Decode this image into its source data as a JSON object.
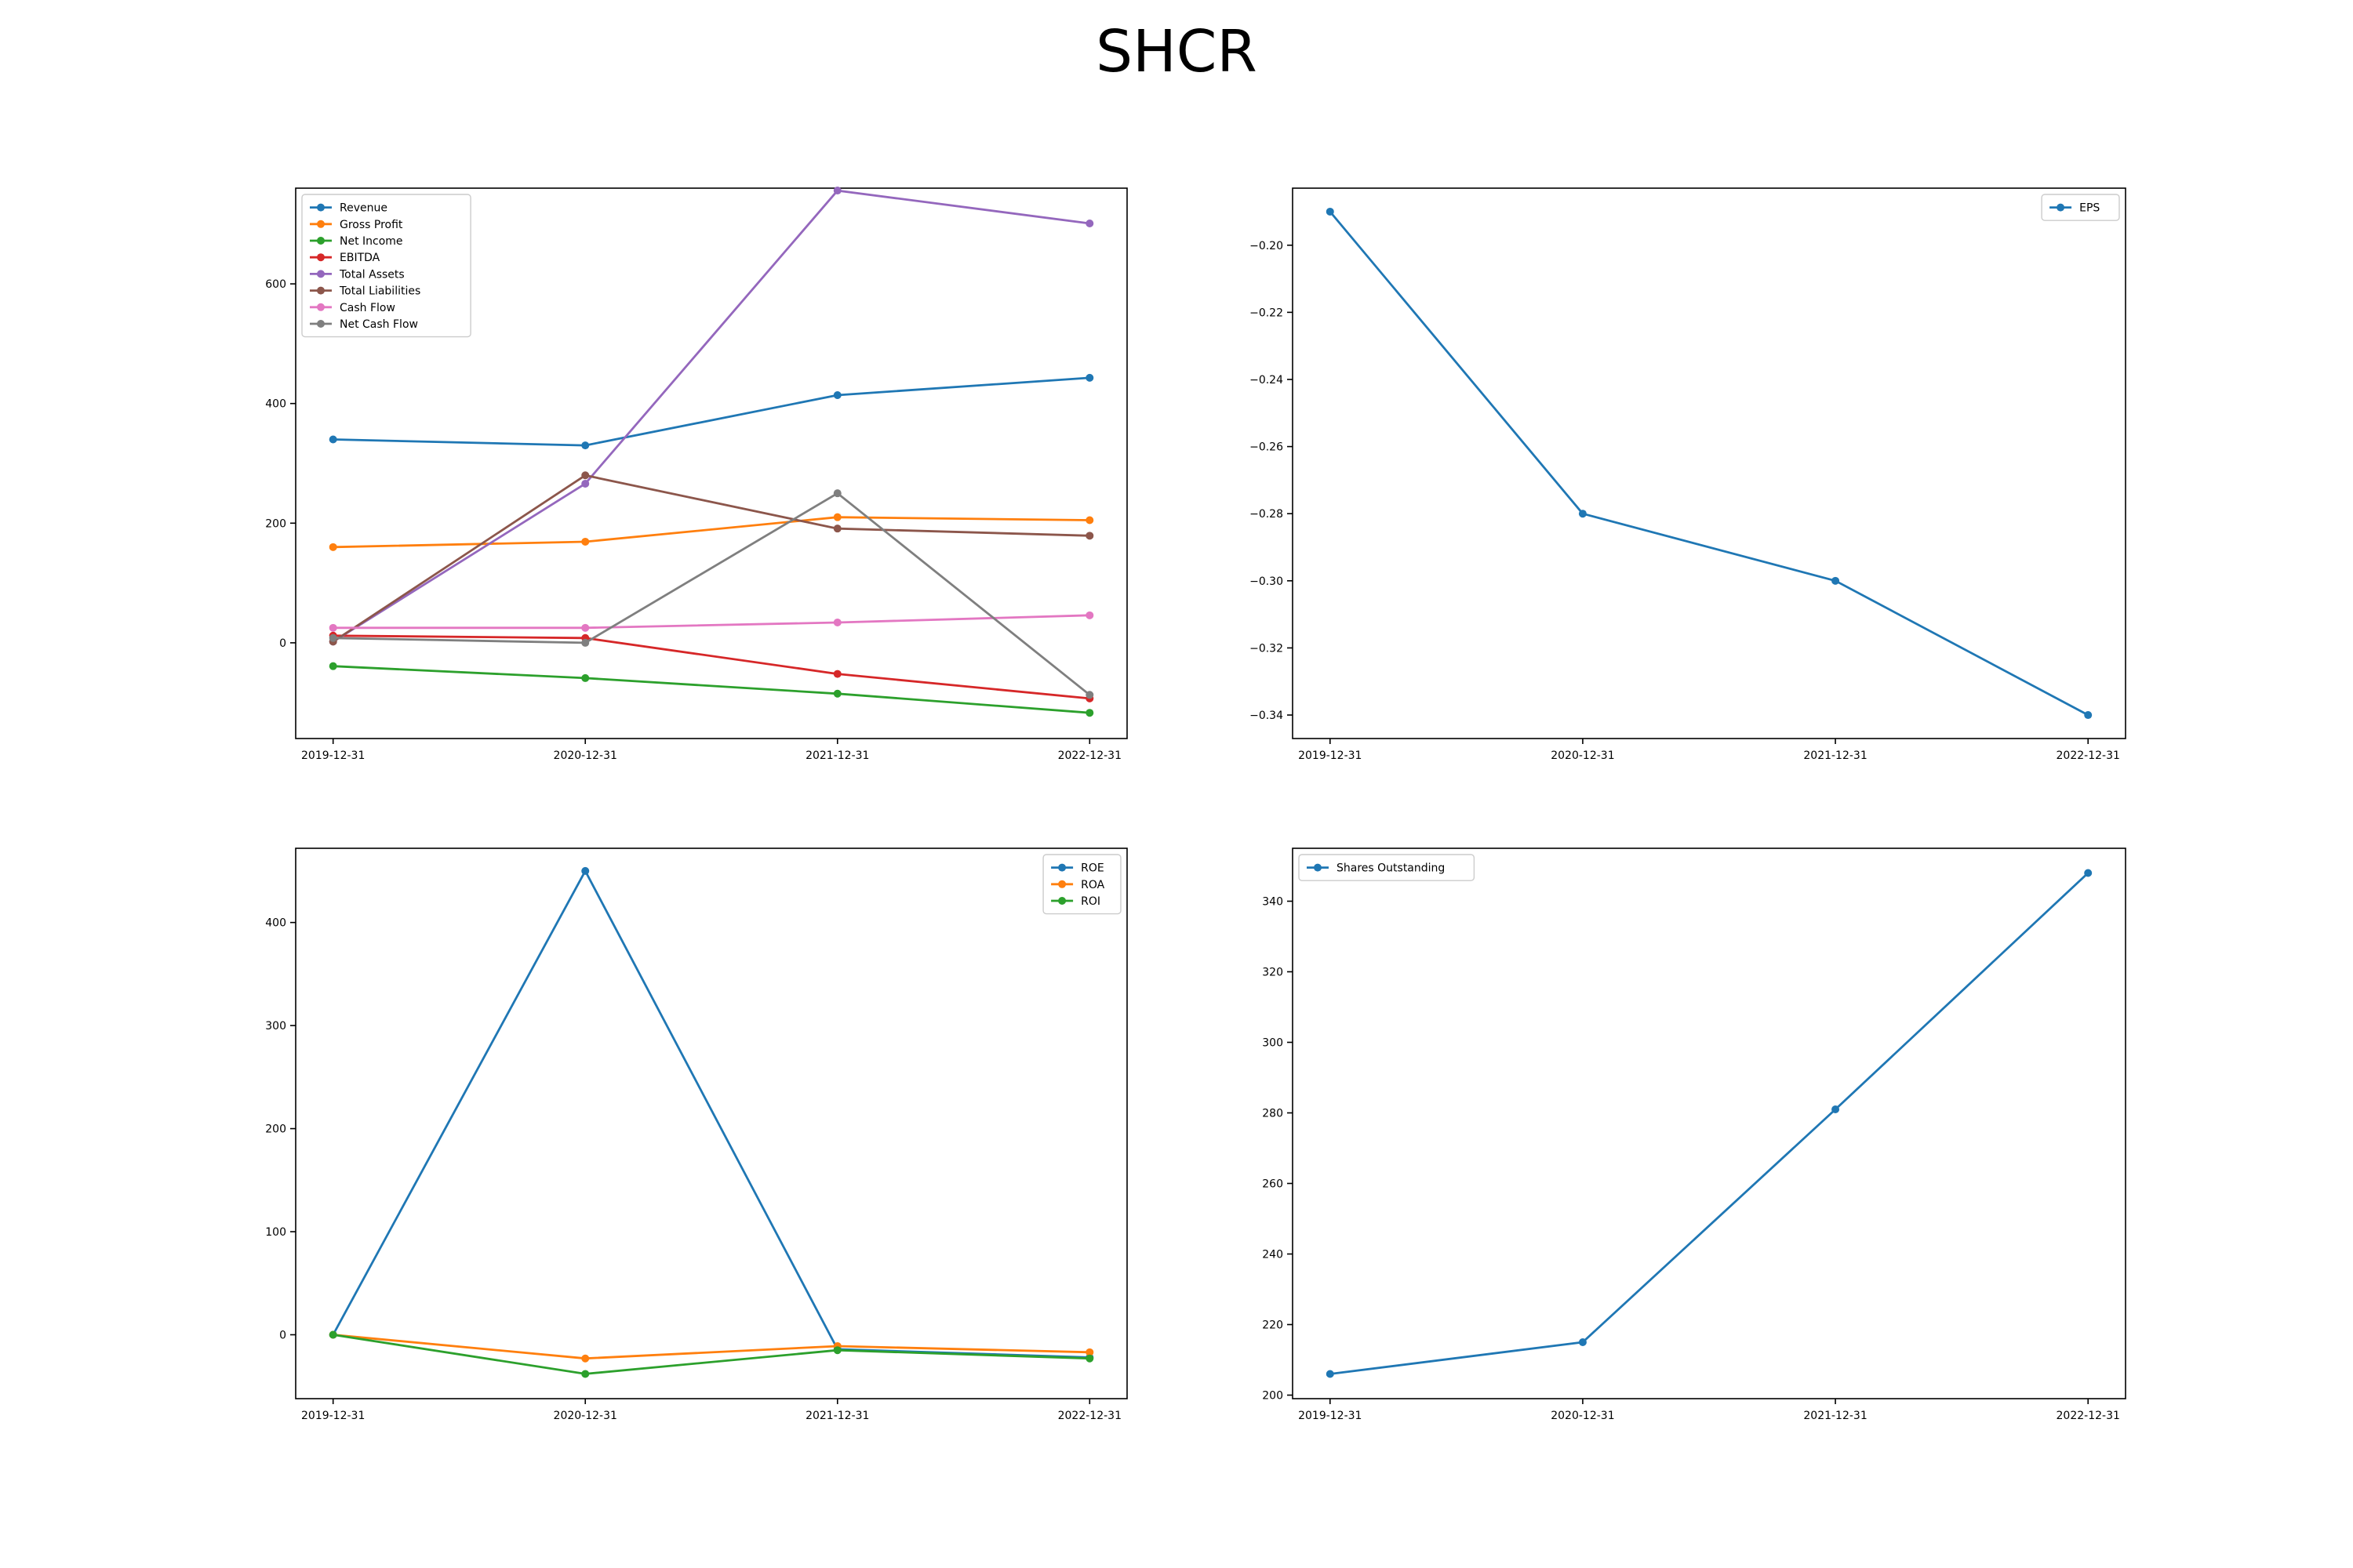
{
  "title": "SHCR",
  "chart_data": [
    {
      "type": "line",
      "categories": [
        "2019-12-31",
        "2020-12-31",
        "2021-12-31",
        "2022-12-31"
      ],
      "ylim": [
        -160,
        760
      ],
      "yticks": [
        0,
        200,
        400,
        600
      ],
      "ytick_labels": [
        "0",
        "200",
        "400",
        "600"
      ],
      "legend_position": "upper-left",
      "series": [
        {
          "name": "Revenue",
          "color": "#1f77b4",
          "values": [
            340,
            330,
            414,
            443
          ]
        },
        {
          "name": "Gross Profit",
          "color": "#ff7f0e",
          "values": [
            160,
            169,
            210,
            205
          ]
        },
        {
          "name": "Net Income",
          "color": "#2ca02c",
          "values": [
            -39,
            -59,
            -85,
            -117
          ]
        },
        {
          "name": "EBITDA",
          "color": "#d62728",
          "values": [
            12,
            8,
            -52,
            -93
          ]
        },
        {
          "name": "Total Assets",
          "color": "#9467bd",
          "values": [
            2,
            266,
            756,
            701
          ]
        },
        {
          "name": "Total Liabilities",
          "color": "#8c564b",
          "values": [
            2,
            280,
            191,
            179
          ]
        },
        {
          "name": "Cash Flow",
          "color": "#e377c2",
          "values": [
            25,
            25,
            34,
            46
          ]
        },
        {
          "name": "Net Cash Flow",
          "color": "#7f7f7f",
          "values": [
            8,
            0,
            250,
            -87
          ]
        }
      ]
    },
    {
      "type": "line",
      "categories": [
        "2019-12-31",
        "2020-12-31",
        "2021-12-31",
        "2022-12-31"
      ],
      "ylim": [
        -0.347,
        -0.183
      ],
      "yticks": [
        -0.2,
        -0.22,
        -0.24,
        -0.26,
        -0.28,
        -0.3,
        -0.32,
        -0.34
      ],
      "ytick_labels": [
        "−0.20",
        "−0.22",
        "−0.24",
        "−0.26",
        "−0.28",
        "−0.30",
        "−0.32",
        "−0.34"
      ],
      "legend_position": "upper-right",
      "series": [
        {
          "name": "EPS",
          "color": "#1f77b4",
          "values": [
            -0.19,
            -0.28,
            -0.3,
            -0.34
          ]
        }
      ]
    },
    {
      "type": "line",
      "categories": [
        "2019-12-31",
        "2020-12-31",
        "2021-12-31",
        "2022-12-31"
      ],
      "ylim": [
        -62,
        472
      ],
      "yticks": [
        0,
        100,
        200,
        300,
        400
      ],
      "ytick_labels": [
        "0",
        "100",
        "200",
        "300",
        "400"
      ],
      "legend_position": "upper-right",
      "series": [
        {
          "name": "ROE",
          "color": "#1f77b4",
          "values": [
            0,
            450,
            -14,
            -22
          ]
        },
        {
          "name": "ROA",
          "color": "#ff7f0e",
          "values": [
            0,
            -23,
            -11,
            -17
          ]
        },
        {
          "name": "ROI",
          "color": "#2ca02c",
          "values": [
            0,
            -38,
            -15,
            -23
          ]
        }
      ]
    },
    {
      "type": "line",
      "categories": [
        "2019-12-31",
        "2020-12-31",
        "2021-12-31",
        "2022-12-31"
      ],
      "ylim": [
        199,
        355
      ],
      "yticks": [
        200,
        220,
        240,
        260,
        280,
        300,
        320,
        340
      ],
      "ytick_labels": [
        "200",
        "220",
        "240",
        "260",
        "280",
        "300",
        "320",
        "340"
      ],
      "legend_position": "upper-left",
      "series": [
        {
          "name": "Shares Outstanding",
          "color": "#1f77b4",
          "values": [
            206,
            215,
            281,
            348
          ]
        }
      ]
    }
  ]
}
